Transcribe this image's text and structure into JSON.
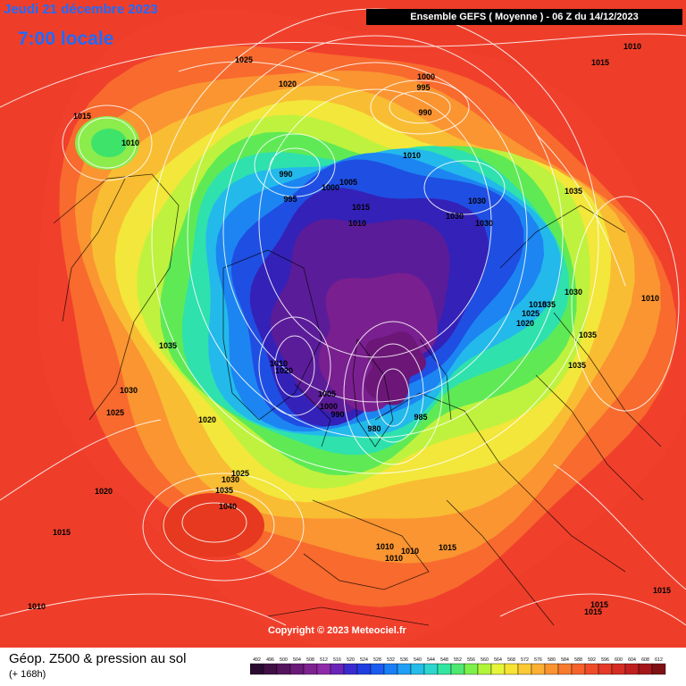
{
  "header": {
    "date": "Jeudi 21 décembre 2023",
    "local_time": "7:00 locale",
    "model_run": "Ensemble GEFS  ( Moyenne )  -  06 Z du 14/12/2023"
  },
  "footer": {
    "title": "Géop. Z500 & pression au sol",
    "lead_time": "(+ 168h)",
    "copyright": "Copyright © 2023 Meteociel.fr"
  },
  "legend": {
    "values": [
      "492",
      "496",
      "500",
      "504",
      "508",
      "512",
      "516",
      "520",
      "524",
      "528",
      "532",
      "536",
      "540",
      "544",
      "548",
      "552",
      "556",
      "560",
      "564",
      "568",
      "572",
      "576",
      "580",
      "584",
      "588",
      "592",
      "596",
      "600",
      "604",
      "608",
      "612"
    ],
    "colors": [
      "#2a0a2e",
      "#3f0f45",
      "#55145e",
      "#6a1a78",
      "#7e2290",
      "#8f2aa8",
      "#6a24b8",
      "#3a2bd0",
      "#1f3fe0",
      "#1a5cf0",
      "#1a7ef5",
      "#1fa0f5",
      "#25bde8",
      "#2cd6cc",
      "#33e6a0",
      "#4ee870",
      "#7df04a",
      "#b2f43a",
      "#e6f53a",
      "#f8e236",
      "#fbc935",
      "#fbb033",
      "#f99431",
      "#f77a2f",
      "#f5622c",
      "#ef4c2a",
      "#e43a27",
      "#d42c23",
      "#c01f1f",
      "#a3171a",
      "#7e1115"
    ],
    "field_colors": [
      "#f0402c",
      "#f86a2e",
      "#fa9531",
      "#f9bd34",
      "#f2e73a",
      "#bff23e",
      "#5fea55",
      "#2fe1ad",
      "#23b9eb",
      "#1c85f2",
      "#1f4ee2",
      "#3421b8",
      "#5b1c99",
      "#7a1f8f",
      "#6c1778"
    ]
  },
  "pressure_labels": [
    "1010",
    "1015",
    "1015",
    "1025",
    "1020",
    "1010",
    "1000",
    "995",
    "990",
    "1010",
    "990",
    "995",
    "1000",
    "1005",
    "1015",
    "1010",
    "1030",
    "1030",
    "1030",
    "1035",
    "1030",
    "1015",
    "1010",
    "1035",
    "1025",
    "1020",
    "1035",
    "1035",
    "1035",
    "1030",
    "1025",
    "1010",
    "1020",
    "1005",
    "1000",
    "990",
    "985",
    "980",
    "1020",
    "1025",
    "1030",
    "1035",
    "1040",
    "1020",
    "1015",
    "1010",
    "1010",
    "1010",
    "1015",
    "1015",
    "1015",
    "1010",
    "1015"
  ]
}
